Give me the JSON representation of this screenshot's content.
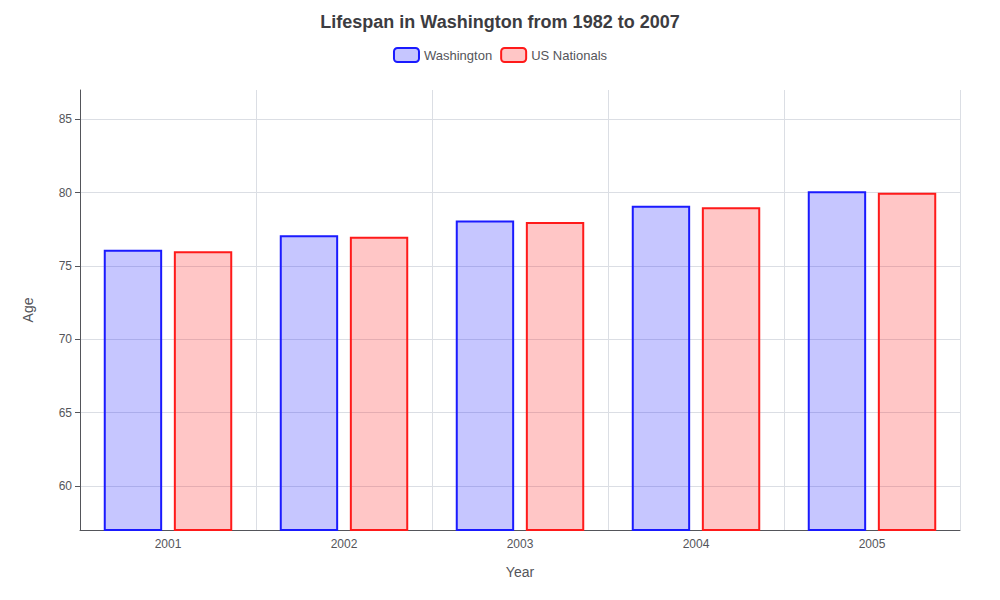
{
  "chart_data": {
    "type": "bar",
    "title": "Lifespan in Washington from 1982 to 2007",
    "x_label": "Year",
    "y_label": "Age",
    "categories": [
      "2001",
      "2002",
      "2003",
      "2004",
      "2005"
    ],
    "series": [
      {
        "name": "Washington",
        "color": "#1a1aff",
        "values": [
          76.1,
          77.1,
          78.1,
          79.1,
          80.1
        ]
      },
      {
        "name": "US Nationals",
        "color": "#ff1a1a",
        "values": [
          76.0,
          77.0,
          78.0,
          79.0,
          80.0
        ]
      }
    ],
    "ylim": [
      57,
      87
    ],
    "yticks": [
      60,
      65,
      70,
      75,
      80,
      85
    ],
    "grid": true,
    "legend": "top"
  }
}
